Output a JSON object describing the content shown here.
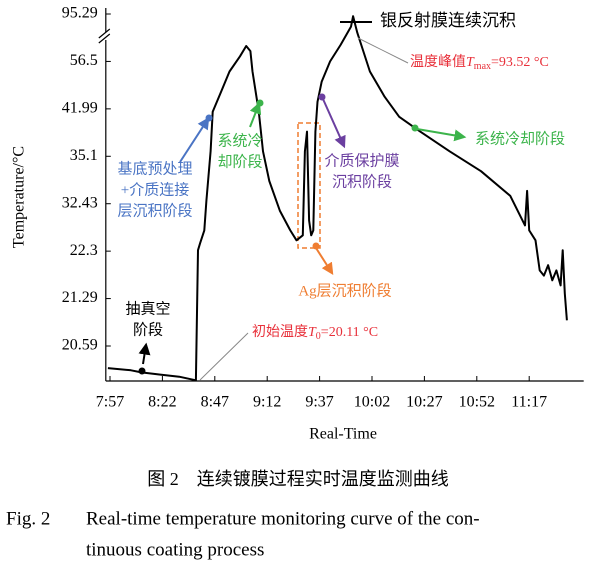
{
  "chart_data": {
    "type": "line",
    "x_label": "Real-Time",
    "y_label": "Temperature/°C",
    "x": [
      "7:56",
      "8:07",
      "8:12",
      "8:21",
      "8:30",
      "8:38",
      "8:39",
      "8:40",
      "8:42",
      "8:43",
      "8:45",
      "8:46",
      "8:50",
      "8:54",
      "8:59",
      "9:02",
      "9:04",
      "9:05",
      "9:08",
      "9:10",
      "9:13",
      "9:18",
      "9:23",
      "9:26",
      "9:29",
      "9:30",
      "9:31",
      "9:32",
      "9:33",
      "9:34",
      "9:35",
      "9:36",
      "9:38",
      "9:42",
      "9:47",
      "9:52",
      "9:53",
      "9:55",
      "10:01",
      "10:08",
      "10:15",
      "10:25",
      "10:39",
      "10:54",
      "11:08",
      "11:15",
      "11:16",
      "11:17",
      "11:20",
      "11:22",
      "11:24",
      "11:26",
      "11:28",
      "11:30",
      "11:32",
      "11:33",
      "11:34",
      "11:35"
    ],
    "series": [
      {
        "name": "银反射膜连续沉积",
        "color": "#000000",
        "values": [
          20.28,
          20.25,
          20.22,
          20.19,
          20.16,
          20.11,
          22.51,
          23.99,
          26.73,
          32.6,
          35.82,
          41.56,
          47.24,
          53.42,
          60.72,
          69.15,
          64.93,
          53.42,
          41.56,
          35.82,
          33.71,
          30.95,
          26.73,
          24.62,
          25.68,
          35.82,
          38.69,
          28.84,
          25.68,
          26.73,
          38.69,
          44.15,
          50.33,
          56.5,
          70,
          85,
          93.52,
          80,
          53.42,
          45.7,
          40.84,
          38.69,
          35.82,
          34.26,
          32.87,
          27.79,
          33.15,
          26.73,
          24.62,
          21.89,
          21.78,
          22.0,
          21.68,
          21.89,
          21.57,
          22.51,
          21.4,
          20.97
        ]
      }
    ],
    "xlim": [
      "7:55",
      "11:43"
    ],
    "xticks": [
      "7:57",
      "8:22",
      "8:47",
      "9:12",
      "9:37",
      "10:02",
      "10:27",
      "10:52",
      "11:17"
    ],
    "ylim": [
      20.1,
      95.29
    ],
    "yticks": [
      20.59,
      21.29,
      22.3,
      32.43,
      35.1,
      41.99,
      56.5,
      95.29
    ],
    "y_scale": "piecewise-even-ticks",
    "axis_break": true,
    "annotations": [
      {
        "lines": [
          "基底预处理",
          "+介质连接",
          "层沉积阶段"
        ],
        "color": "#4a74c4"
      },
      {
        "lines": [
          "系统冷",
          "却阶段"
        ],
        "color": "#3cb44b"
      },
      {
        "lines": [
          "Ag层沉积阶段"
        ],
        "color": "#ef7d31"
      },
      {
        "lines": [
          "介质保护膜",
          "沉积阶段"
        ],
        "color": "#6b3fa0"
      },
      {
        "lines": [
          "系统冷却阶段"
        ],
        "color": "#3cb44b"
      },
      {
        "lines": [
          "抽真空",
          "阶段"
        ],
        "color": "#000000"
      },
      {
        "before": "温度峰值",
        "symbol": "T",
        "subscript": "max",
        "after": "=93.52 °C",
        "color": "#e8303a"
      },
      {
        "before": "初始温度",
        "symbol": "T",
        "subscript": "0",
        "after": "=20.11 °C",
        "color": "#e8303a"
      }
    ]
  },
  "figure": {
    "caption_zh": "图 2　连续镀膜过程实时温度监测曲线",
    "caption_label": "Fig. 2",
    "caption_en_lines": [
      "Real-time temperature monitoring curve of the con-",
      "tinuous coating process"
    ]
  }
}
